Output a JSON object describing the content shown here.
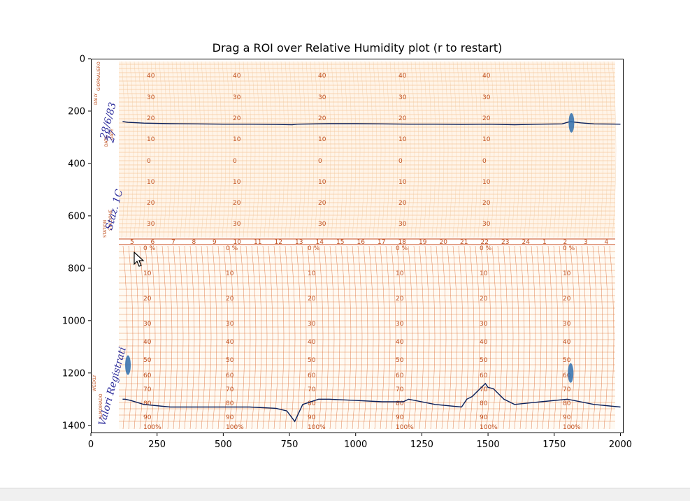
{
  "window": {
    "title": "Drag a ROI over Relative Humidity plot (r to restart)"
  },
  "chart_data": {
    "type": "image",
    "title": "Drag a ROI over Relative Humidity plot (r to restart)",
    "xlabel": "",
    "ylabel": "",
    "xlim": [
      0,
      2000
    ],
    "ylim": [
      1430,
      0
    ],
    "y_inverted": true,
    "x_ticks": [
      0,
      250,
      500,
      750,
      1000,
      1250,
      1500,
      1750,
      2000
    ],
    "y_ticks": [
      0,
      200,
      400,
      600,
      800,
      1000,
      1200,
      1400
    ],
    "grid": false,
    "image_content": {
      "upper_chart_hour_labels": [
        "5",
        "6",
        "7",
        "8",
        "9",
        "10",
        "11",
        "12",
        "13",
        "14",
        "15",
        "16",
        "17",
        "18",
        "19",
        "20",
        "21",
        "22",
        "23",
        "24",
        "1",
        "2",
        "3",
        "4"
      ],
      "temperature_scale_labels": [
        "40",
        "30",
        "20",
        "10",
        "0",
        "10",
        "20",
        "30"
      ],
      "humidity_scale_labels": [
        "0 %",
        "10",
        "20",
        "30",
        "40",
        "50",
        "60",
        "70",
        "80",
        "90",
        "100%"
      ],
      "printed_side_labels": [
        "WEEKLY",
        "ALMOIRADO",
        "STAZIONE",
        "STATION",
        "DATA",
        "DATE",
        "GIORNALIERO",
        "DAILY"
      ],
      "handwritten_notes": [
        "28/6/83",
        "27",
        "Staz. 1C",
        "Valori Registrati"
      ]
    },
    "traces": [
      {
        "name": "upper trace",
        "x": [
          120,
          140,
          200,
          300,
          400,
          500,
          600,
          700,
          760,
          780,
          900,
          1000,
          1100,
          1200,
          1300,
          1400,
          1500,
          1600,
          1700,
          1780,
          1810,
          1850,
          1900,
          2000
        ],
        "y": [
          240,
          243,
          246,
          248,
          249,
          250,
          250,
          251,
          252,
          250,
          248,
          248,
          249,
          250,
          250,
          251,
          250,
          252,
          250,
          249,
          240,
          245,
          249,
          250
        ]
      },
      {
        "name": "lower trace",
        "x": [
          120,
          130,
          150,
          200,
          300,
          400,
          500,
          600,
          700,
          740,
          770,
          800,
          860,
          900,
          1000,
          1100,
          1180,
          1200,
          1300,
          1400,
          1420,
          1440,
          1470,
          1490,
          1500,
          1520,
          1560,
          1600,
          1700,
          1800,
          1900,
          2000
        ],
        "y": [
          1300,
          1300,
          1305,
          1320,
          1330,
          1330,
          1330,
          1330,
          1335,
          1345,
          1385,
          1320,
          1300,
          1300,
          1305,
          1310,
          1310,
          1300,
          1320,
          1330,
          1300,
          1290,
          1260,
          1240,
          1255,
          1260,
          1300,
          1320,
          1310,
          1300,
          1320,
          1330
        ]
      }
    ],
    "markers": [
      {
        "x": 140,
        "y": 1170
      },
      {
        "x": 1812,
        "y": 1200
      },
      {
        "x": 1815,
        "y": 245
      }
    ]
  }
}
